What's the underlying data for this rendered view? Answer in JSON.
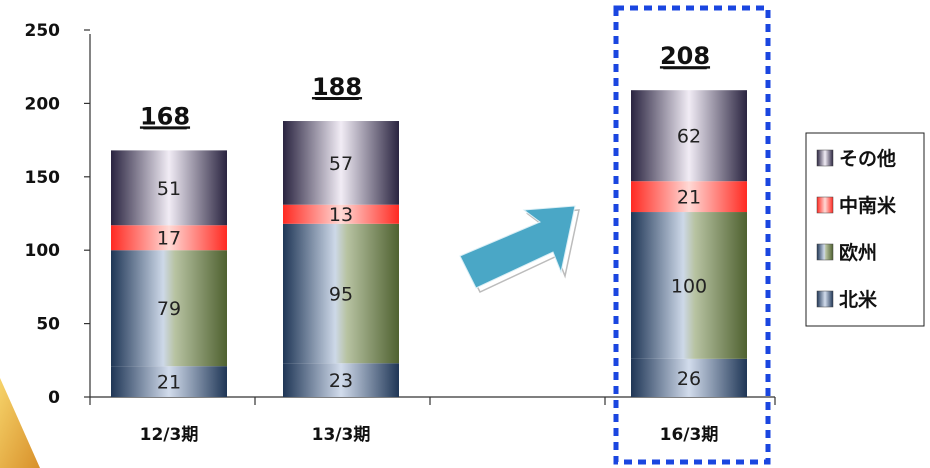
{
  "chart_data": {
    "type": "bar",
    "stacked": true,
    "categories": [
      "12/3期",
      "13/3期",
      "",
      "16/3期"
    ],
    "series": [
      {
        "name": "北米",
        "values": [
          21,
          23,
          null,
          26
        ]
      },
      {
        "name": "欧州",
        "values": [
          79,
          95,
          null,
          100
        ]
      },
      {
        "name": "中南米",
        "values": [
          17,
          13,
          null,
          21
        ]
      },
      {
        "name": "その他",
        "values": [
          51,
          57,
          null,
          62
        ]
      }
    ],
    "totals": [
      "168",
      "188",
      null,
      "208"
    ],
    "y_ticks": [
      "0",
      "50",
      "100",
      "150",
      "200",
      "250"
    ],
    "ylim": [
      0,
      250
    ],
    "grid": false,
    "legend_position": "right",
    "highlighted_category": "16/3期",
    "colors": {
      "北米": [
        "#1d3352",
        "#c8d4e6"
      ],
      "欧州_left": [
        "#1d3352",
        "#c8d4e6"
      ],
      "欧州_right": "#5a6b38",
      "中南米": [
        "#ff3b30",
        "#ffd7d3"
      ],
      "その他": [
        "#2e2745",
        "#eee8f3"
      ],
      "highlight_border": "#1a46e0",
      "arrow": "#49a9c7"
    }
  }
}
